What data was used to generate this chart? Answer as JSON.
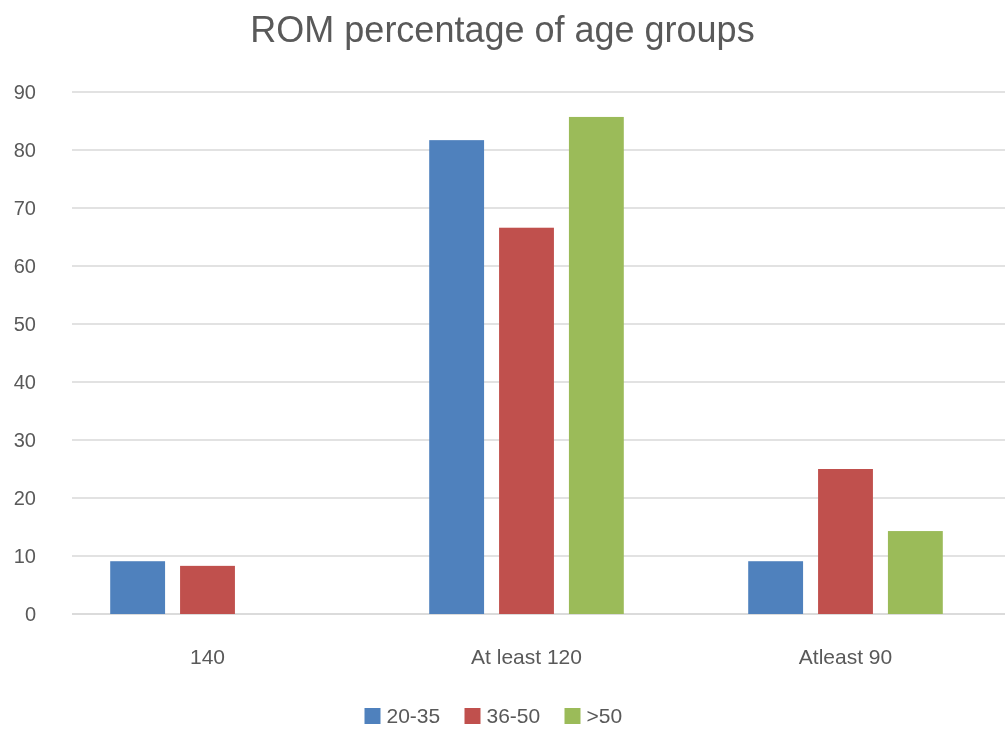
{
  "chart_data": {
    "type": "bar",
    "title": "ROM percentage of age groups",
    "categories": [
      "140",
      "At least 120",
      "Atleast 90"
    ],
    "series": [
      {
        "name": "20-35",
        "color": "#4f81bd",
        "values": [
          9.1,
          81.7,
          9.1
        ]
      },
      {
        "name": "36-50",
        "color": "#c0504d",
        "values": [
          8.3,
          66.6,
          25
        ]
      },
      {
        "name": ">50",
        "color": "#9bbb59",
        "values": [
          0,
          85.7,
          14.3
        ]
      }
    ],
    "ylim": [
      0,
      90
    ],
    "yticks": [
      0,
      10,
      20,
      30,
      40,
      50,
      60,
      70,
      80,
      90
    ],
    "grid": "y",
    "legend": "bottom"
  }
}
